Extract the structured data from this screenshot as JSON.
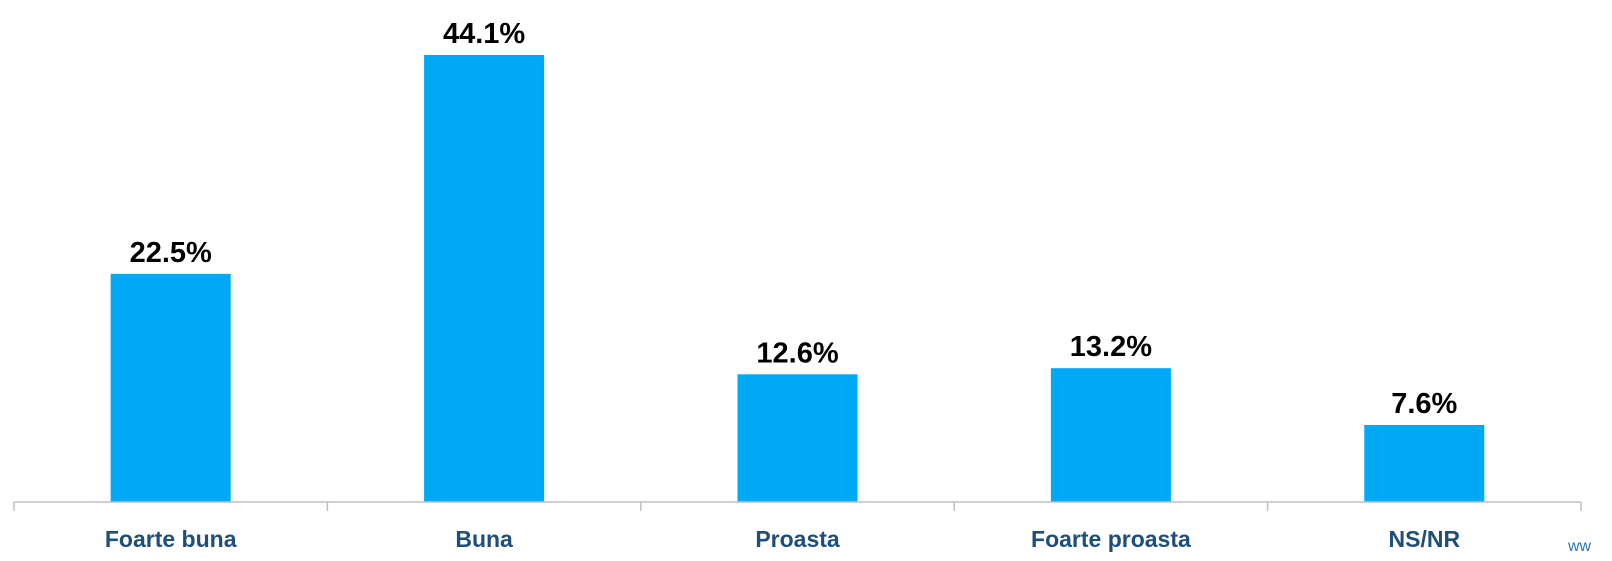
{
  "chart_data": {
    "type": "bar",
    "categories": [
      "Foarte buna",
      "Buna",
      "Proasta",
      "Foarte proasta",
      "NS/NR"
    ],
    "values": [
      22.5,
      44.1,
      12.6,
      13.2,
      7.6
    ],
    "value_labels": [
      "22.5%",
      "44.1%",
      "12.6%",
      "13.2%",
      "7.6%"
    ],
    "ylim": [
      0,
      44.1
    ],
    "grid": false,
    "bar_color": "#00A9F4",
    "category_label_color": "#1F4E79"
  },
  "watermark": "ww"
}
